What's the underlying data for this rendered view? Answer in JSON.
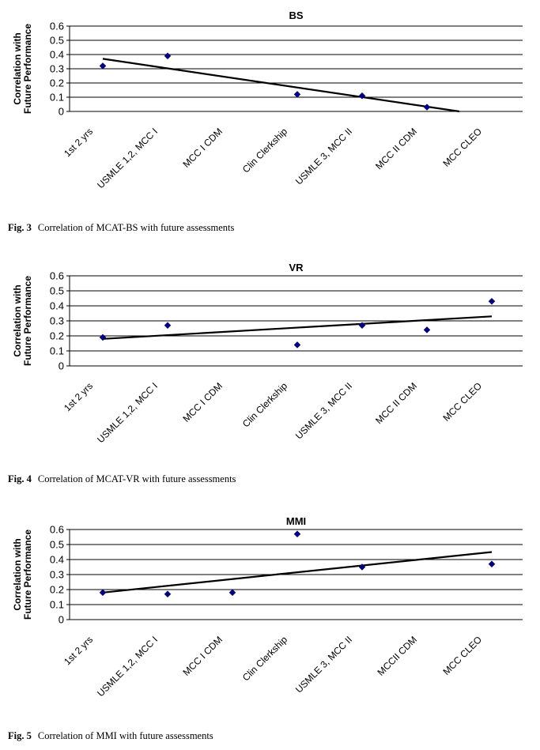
{
  "chart_data": [
    {
      "type": "scatter",
      "title": "BS",
      "ylabel": [
        "Correlation with",
        "Future Performance"
      ],
      "categories": [
        "1st 2 yrs",
        "USMLE 1,2, MCC I",
        "MCC I CDM",
        "Clin Clerkship",
        "USMLE 3, MCC II",
        "MCC II CDM",
        "MCC CLEO"
      ],
      "series": [
        {
          "values": [
            0.32,
            0.39,
            null,
            0.12,
            0.11,
            0.03,
            null
          ]
        }
      ],
      "trendline": {
        "start": [
          1,
          0.37
        ],
        "end": [
          6.5,
          0.0
        ]
      },
      "yticks": [
        "0",
        "0.1",
        "0.2",
        "0.3",
        "0.4",
        "0.5",
        "0.6"
      ],
      "ylim": [
        0,
        0.6
      ],
      "grid": true,
      "caption": {
        "label": "Fig. 3",
        "text": "Correlation of MCAT-BS with future assessments"
      }
    },
    {
      "type": "scatter",
      "title": "VR",
      "ylabel": [
        "Correlation with",
        "Future Performance"
      ],
      "categories": [
        "1st 2 yrs",
        "USMLE 1,2, MCC I",
        "MCC I CDM",
        "Clin Clerkship",
        "USMLE 3, MCC II",
        "MCC II CDM",
        "MCC CLEO"
      ],
      "series": [
        {
          "values": [
            0.19,
            0.27,
            null,
            0.14,
            0.27,
            0.24,
            0.43
          ]
        }
      ],
      "trendline": {
        "start": [
          1,
          0.18
        ],
        "end": [
          7,
          0.33
        ]
      },
      "yticks": [
        "0",
        "0.1",
        "0.2",
        "0.3",
        "0.4",
        "0.5",
        "0.6"
      ],
      "ylim": [
        0,
        0.6
      ],
      "grid": true,
      "caption": {
        "label": "Fig. 4",
        "text": "Correlation of MCAT-VR with future assessments"
      }
    },
    {
      "type": "scatter",
      "title": "MMI",
      "ylabel": [
        "Correlation with",
        "Future Performance"
      ],
      "categories": [
        "1st 2 yrs",
        "USMLE 1,2, MCC I",
        "MCC I CDM",
        "Clin Clerkship",
        "USMLE 3, MCC II",
        "MCCII CDM",
        "MCC CLEO"
      ],
      "series": [
        {
          "values": [
            0.18,
            0.17,
            0.18,
            0.57,
            0.35,
            null,
            0.37
          ]
        }
      ],
      "trendline": {
        "start": [
          1,
          0.18
        ],
        "end": [
          7,
          0.45
        ]
      },
      "yticks": [
        "0",
        "0.1",
        "0.2",
        "0.3",
        "0.4",
        "0.5",
        "0.6"
      ],
      "ylim": [
        0,
        0.6
      ],
      "grid": true,
      "caption": {
        "label": "Fig. 5",
        "text": "Correlation of MMI with future assessments"
      }
    }
  ]
}
